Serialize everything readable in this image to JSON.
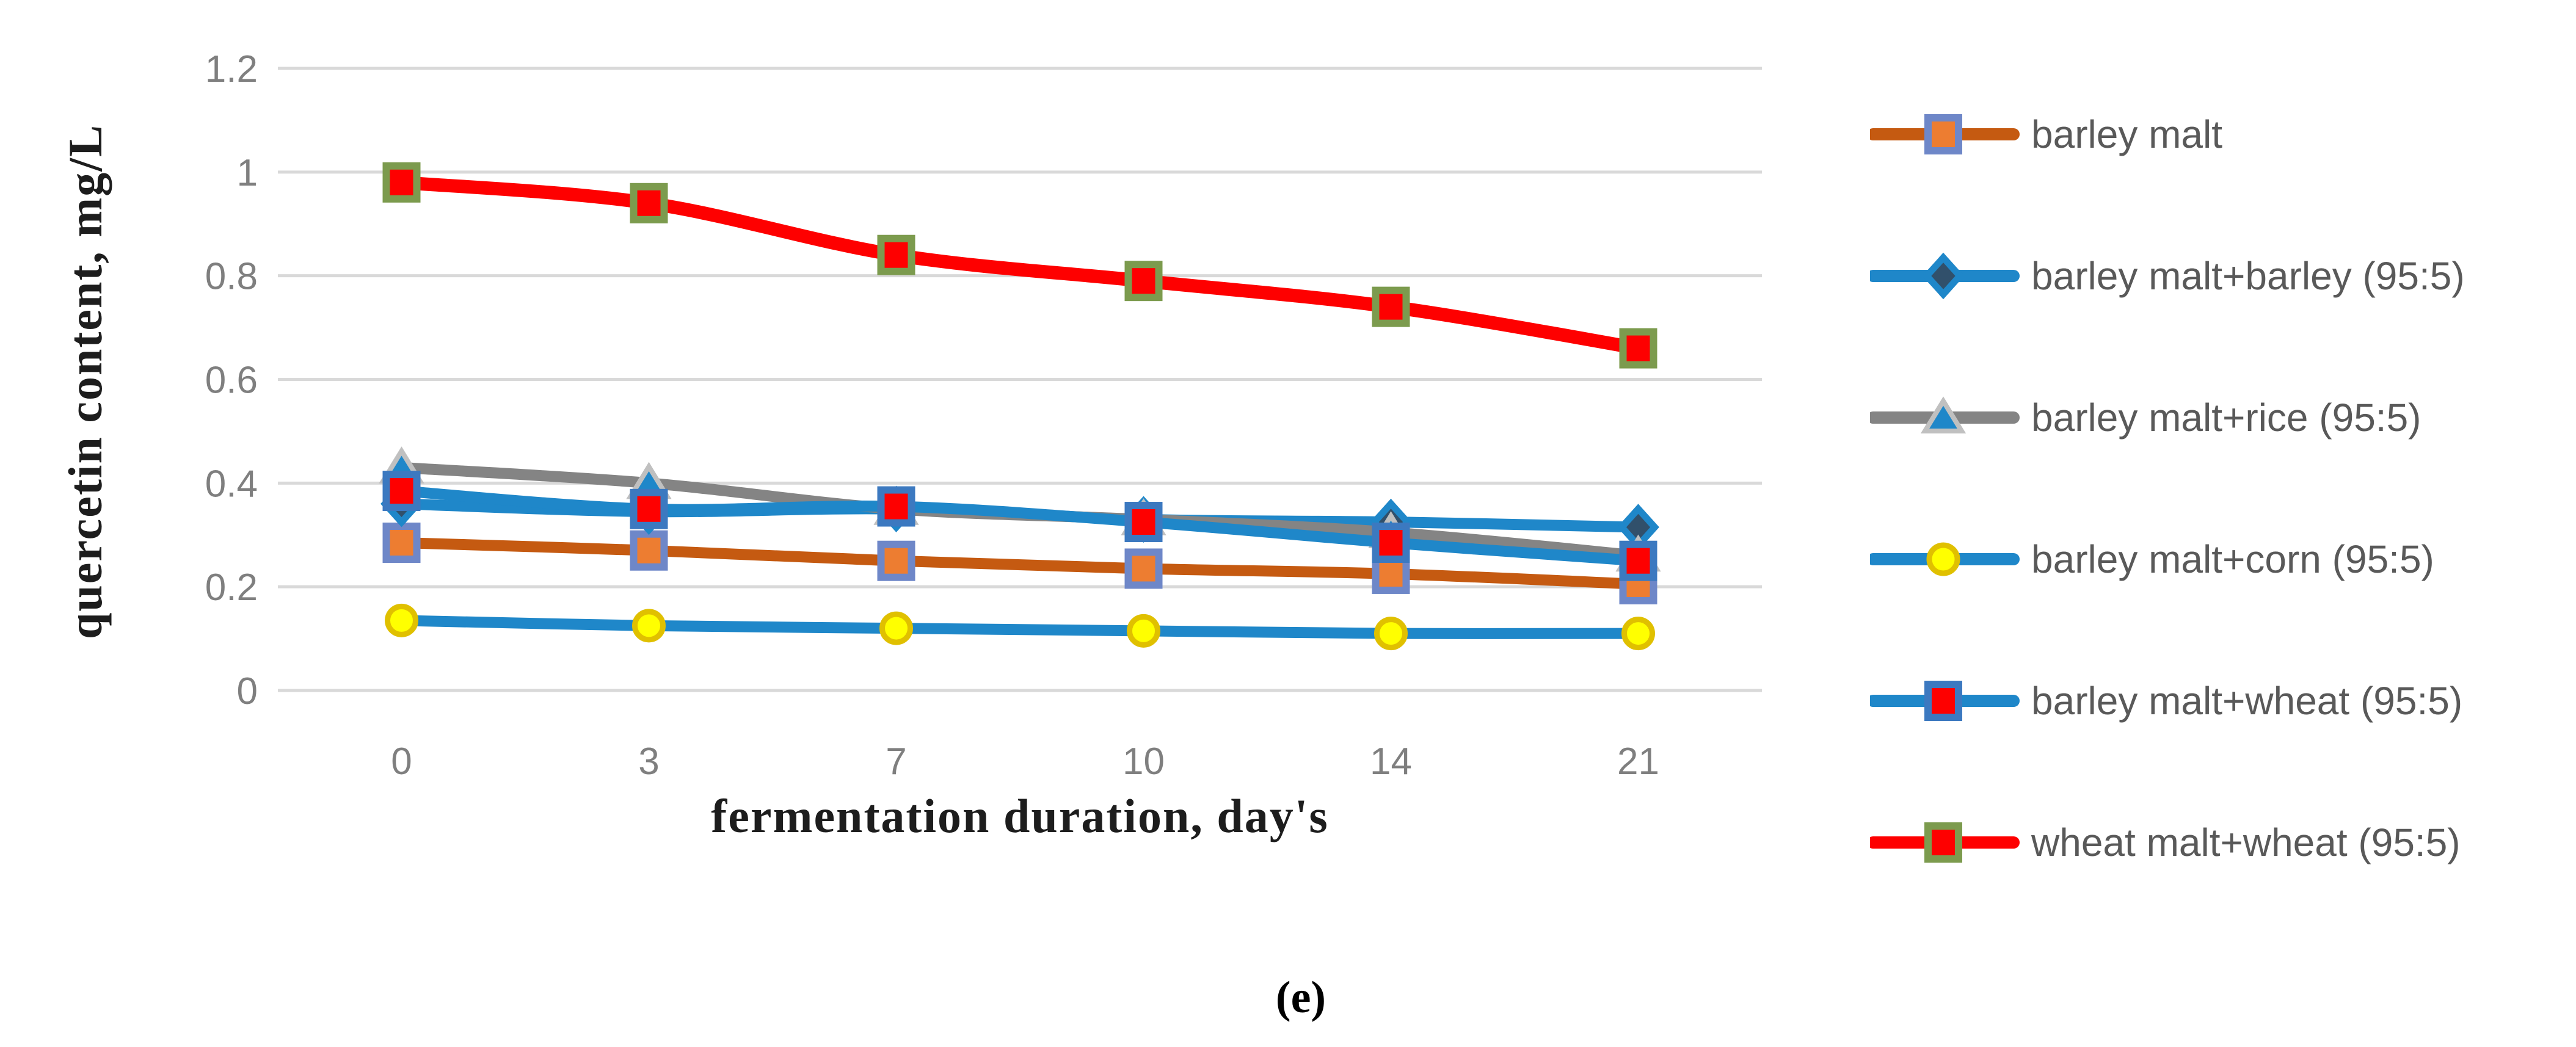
{
  "figure": {
    "panel_label": "(e)",
    "background_color": "#FFFFFF"
  },
  "chart_data": {
    "type": "line",
    "title": "",
    "xlabel": "fermentation duration, day's",
    "ylabel": "quercetin content, mg/L",
    "categories": [
      "0",
      "3",
      "7",
      "10",
      "14",
      "21"
    ],
    "y_tick_labels": [
      "0",
      "0.2",
      "0.4",
      "0.6",
      "0.8",
      "1",
      "1.2"
    ],
    "ylim": [
      0,
      1.2
    ],
    "y_tick_step": 0.2,
    "grid": "horizontal",
    "legend_position": "right",
    "axis_text_color": "#7F7F7F",
    "gridline_color": "#D9D9D9",
    "legend_text_color": "#595959",
    "series": [
      {
        "name": "barley malt",
        "values": [
          0.285,
          0.27,
          0.25,
          0.235,
          0.225,
          0.205
        ],
        "line_color": "#C55A11",
        "marker": "square",
        "marker_fill": "#ED7D31",
        "marker_stroke": "#6E87C8"
      },
      {
        "name": "barley malt+barley (95:5)",
        "values": [
          0.36,
          0.345,
          0.35,
          0.33,
          0.325,
          0.315
        ],
        "line_color": "#1F87C9",
        "marker": "diamond",
        "marker_fill": "#31506B",
        "marker_stroke": "#1F87C9"
      },
      {
        "name": "barley malt+rice (95:5)",
        "values": [
          0.43,
          0.4,
          0.35,
          0.33,
          0.305,
          0.26
        ],
        "line_color": "#848484",
        "marker": "triangle",
        "marker_fill": "#1F87C9",
        "marker_stroke": "#C0C0C0"
      },
      {
        "name": "barley malt+corn (95:5)",
        "values": [
          0.135,
          0.125,
          0.12,
          0.115,
          0.11,
          0.11
        ],
        "line_color": "#1F87C9",
        "marker": "circle",
        "marker_fill": "#FFFF00",
        "marker_stroke": "#E0C000"
      },
      {
        "name": "barley malt+wheat (95:5)",
        "values": [
          0.385,
          0.35,
          0.355,
          0.325,
          0.285,
          0.25
        ],
        "line_color": "#1F87C9",
        "marker": "square",
        "marker_fill": "#FE0000",
        "marker_stroke": "#3C79C0"
      },
      {
        "name": "wheat malt+wheat (95:5)",
        "values": [
          0.98,
          0.94,
          0.84,
          0.79,
          0.74,
          0.66
        ],
        "line_color": "#FE0000",
        "marker": "square",
        "marker_fill": "#FE0000",
        "marker_stroke": "#7C9B4E"
      }
    ]
  }
}
